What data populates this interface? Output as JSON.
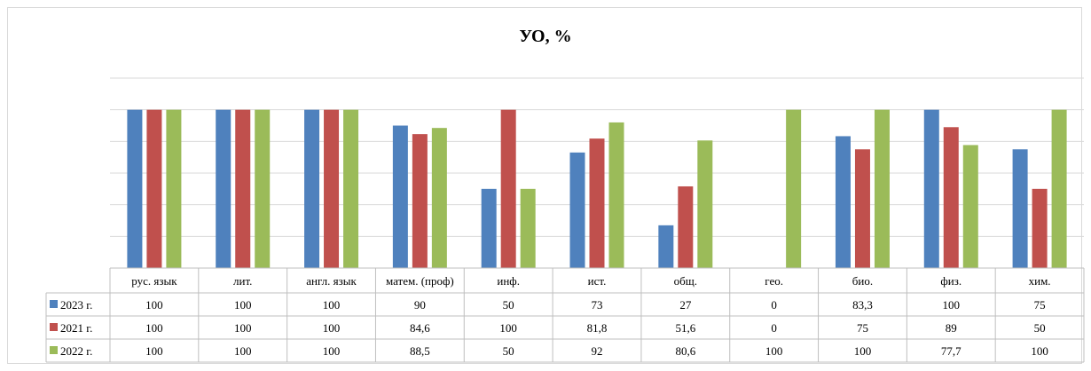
{
  "chart_data": {
    "type": "bar",
    "title": "УО, %",
    "categories": [
      "рус. язык",
      "лит.",
      "англ. язык",
      "матем. (проф)",
      "инф.",
      "ист.",
      "общ.",
      "гео.",
      "био.",
      "физ.",
      "хим."
    ],
    "series": [
      {
        "name": "2023 г.",
        "color": "#4f81bd",
        "values": [
          100,
          100,
          100,
          90,
          50,
          73,
          27,
          0,
          83.3,
          100,
          75
        ]
      },
      {
        "name": "2021 г.",
        "color": "#c0504d",
        "values": [
          100,
          100,
          100,
          84.6,
          100,
          81.8,
          51.6,
          0,
          75,
          89,
          50
        ]
      },
      {
        "name": "2022 г.",
        "color": "#9bbb59",
        "values": [
          100,
          100,
          100,
          88.5,
          50,
          92,
          80.6,
          100,
          100,
          77.7,
          100
        ]
      }
    ],
    "value_labels": [
      [
        "100",
        "100",
        "100",
        "90",
        "50",
        "73",
        "27",
        "0",
        "83,3",
        "100",
        "75"
      ],
      [
        "100",
        "100",
        "100",
        "84,6",
        "100",
        "81,8",
        "51,6",
        "0",
        "75",
        "89",
        "50"
      ],
      [
        "100",
        "100",
        "100",
        "88,5",
        "50",
        "92",
        "80,6",
        "100",
        "100",
        "77,7",
        "100"
      ]
    ],
    "ylim": [
      0,
      120
    ],
    "grid": true,
    "legend": "data-table-left"
  }
}
